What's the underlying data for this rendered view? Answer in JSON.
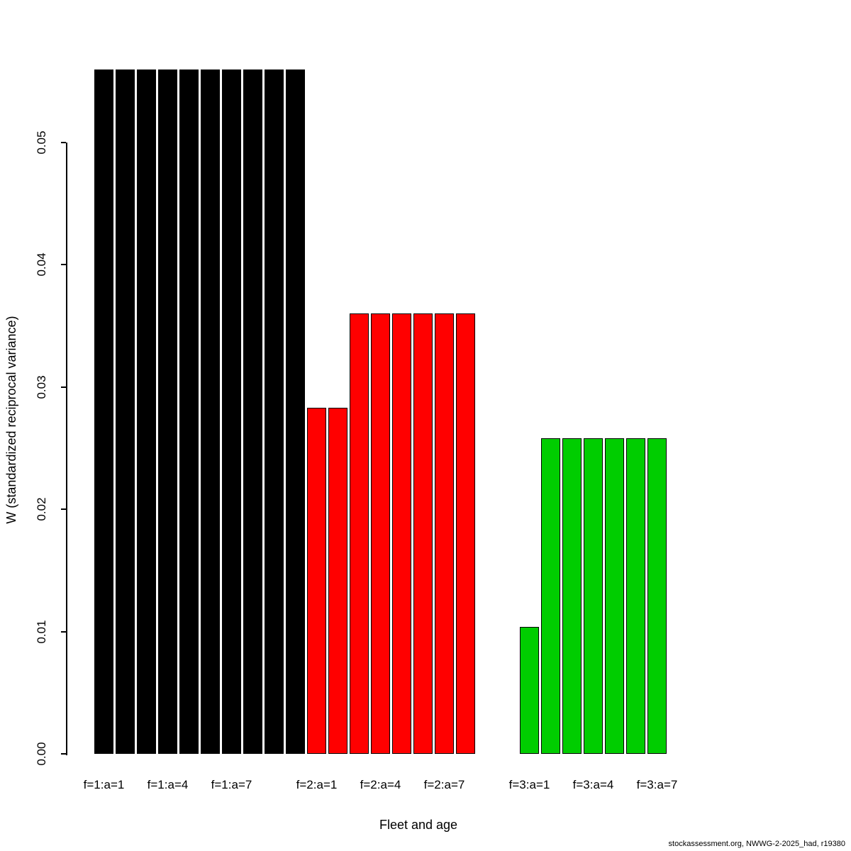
{
  "footer": {
    "text": "stockassessment.org, NWWG-2-2025_had, r19380"
  },
  "chart_data": {
    "type": "bar",
    "title": "",
    "xlabel": "Fleet and age",
    "ylabel": "W (standardized reciprocal variance)",
    "ylim": [
      0,
      0.058
    ],
    "grid": false,
    "legend": "none",
    "series": [
      {
        "name": "fleet-1",
        "color": "#000000",
        "start_slot": 0,
        "ages": [
          1,
          2,
          3,
          4,
          5,
          6,
          7,
          8,
          9,
          10
        ],
        "values": [
          0.056,
          0.056,
          0.056,
          0.056,
          0.056,
          0.056,
          0.056,
          0.056,
          0.056,
          0.056
        ]
      },
      {
        "name": "fleet-2",
        "color": "#FF0000",
        "start_slot": 10,
        "ages": [
          1,
          2,
          3,
          4,
          5,
          6,
          7,
          8
        ],
        "values": [
          0.0283,
          0.0283,
          0.036,
          0.036,
          0.036,
          0.036,
          0.036,
          0.036
        ]
      },
      {
        "name": "fleet-3",
        "color": "#00CD00",
        "start_slot": 20,
        "ages": [
          1,
          2,
          3,
          4,
          5,
          6,
          7
        ],
        "values": [
          0.0104,
          0.0258,
          0.0258,
          0.0258,
          0.0258,
          0.0258,
          0.0258
        ]
      }
    ],
    "x_ticks": [
      {
        "label": "f=1:a=1",
        "slot": 0
      },
      {
        "label": "f=1:a=4",
        "slot": 3
      },
      {
        "label": "f=1:a=7",
        "slot": 6
      },
      {
        "label": "f=2:a=1",
        "slot": 10
      },
      {
        "label": "f=2:a=4",
        "slot": 13
      },
      {
        "label": "f=2:a=7",
        "slot": 16
      },
      {
        "label": "f=3:a=1",
        "slot": 20
      },
      {
        "label": "f=3:a=4",
        "slot": 23
      },
      {
        "label": "f=3:a=7",
        "slot": 26
      }
    ],
    "y_ticks": [
      {
        "label": "0.00",
        "value": 0.0
      },
      {
        "label": "0.01",
        "value": 0.01
      },
      {
        "label": "0.02",
        "value": 0.02
      },
      {
        "label": "0.03",
        "value": 0.03
      },
      {
        "label": "0.04",
        "value": 0.04
      },
      {
        "label": "0.05",
        "value": 0.05
      }
    ]
  }
}
